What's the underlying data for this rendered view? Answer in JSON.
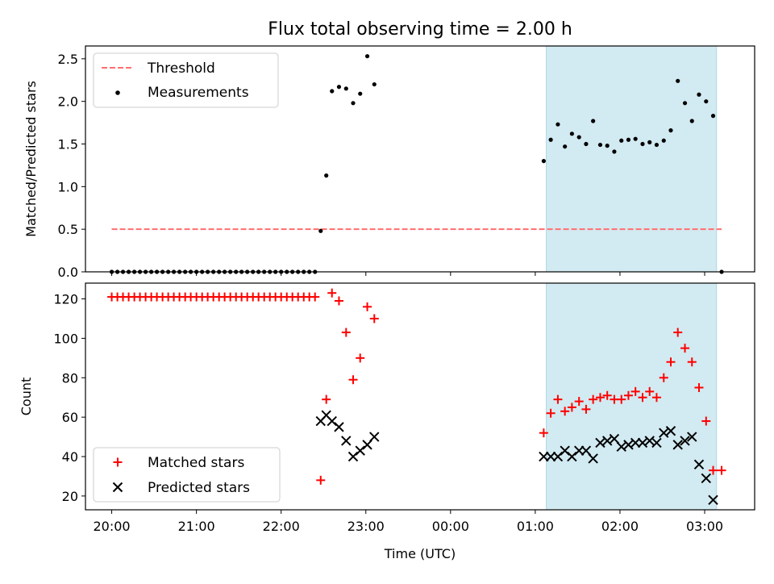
{
  "chart_data": [
    {
      "panel": "top",
      "type": "scatter",
      "title": "Flux total observing time = 2.00 h",
      "ylabel": "Matched/Predicted stars",
      "xlabel": "",
      "xlim_hours": [
        19.69,
        27.59
      ],
      "ylim": [
        0,
        2.65
      ],
      "yticks": [
        0.0,
        0.5,
        1.0,
        1.5,
        2.0,
        2.5
      ],
      "ytick_labels": [
        "0.0",
        "0.5",
        "1.0",
        "1.5",
        "2.0",
        "2.5"
      ],
      "xticks_hours": [
        20,
        21,
        22,
        23,
        24,
        25,
        26,
        27
      ],
      "legend_position": "upper-left",
      "shaded_span_hours": [
        25.13,
        27.14
      ],
      "shaded_color": "#add8e6",
      "threshold": {
        "name": "Threshold",
        "value": 0.5,
        "x_range_hours": [
          20.0,
          27.2
        ],
        "color": "#ff6f6f",
        "style": "dashed"
      },
      "series": [
        {
          "name": "Measurements",
          "color": "#000000",
          "marker": "dot",
          "x_hours": [
            20.0,
            20.067,
            20.133,
            20.2,
            20.267,
            20.333,
            20.4,
            20.467,
            20.533,
            20.6,
            20.667,
            20.733,
            20.8,
            20.867,
            20.933,
            21.0,
            21.067,
            21.133,
            21.2,
            21.267,
            21.333,
            21.4,
            21.467,
            21.533,
            21.6,
            21.667,
            21.733,
            21.8,
            21.867,
            21.933,
            22.0,
            22.067,
            22.133,
            22.2,
            22.267,
            22.333,
            22.4,
            22.467,
            22.533,
            22.6,
            22.683,
            22.767,
            22.85,
            22.933,
            23.017,
            23.1,
            25.1,
            25.183,
            25.267,
            25.35,
            25.433,
            25.517,
            25.6,
            25.683,
            25.767,
            25.85,
            25.933,
            26.017,
            26.1,
            26.183,
            26.267,
            26.35,
            26.433,
            26.517,
            26.6,
            26.683,
            26.767,
            26.85,
            26.933,
            27.017,
            27.1,
            27.2
          ],
          "y": [
            0,
            0,
            0,
            0,
            0,
            0,
            0,
            0,
            0,
            0,
            0,
            0,
            0,
            0,
            0,
            0,
            0,
            0,
            0,
            0,
            0,
            0,
            0,
            0,
            0,
            0,
            0,
            0,
            0,
            0,
            0,
            0,
            0,
            0,
            0,
            0,
            0,
            0.48,
            1.13,
            2.12,
            2.17,
            2.15,
            1.98,
            2.09,
            2.53,
            2.2,
            1.3,
            1.55,
            1.73,
            1.47,
            1.62,
            1.58,
            1.5,
            1.77,
            1.49,
            1.48,
            1.41,
            1.54,
            1.55,
            1.56,
            1.5,
            1.52,
            1.49,
            1.54,
            1.66,
            2.24,
            1.98,
            1.77,
            2.08,
            2.0,
            1.83,
            0.0
          ]
        }
      ]
    },
    {
      "panel": "bottom",
      "type": "scatter",
      "xlabel": "Time (UTC)",
      "ylabel": "Count",
      "xlim_hours": [
        19.69,
        27.59
      ],
      "ylim": [
        13,
        128
      ],
      "yticks": [
        20,
        40,
        60,
        80,
        100,
        120
      ],
      "ytick_labels": [
        "20",
        "40",
        "60",
        "80",
        "100",
        "120"
      ],
      "xticks_hours": [
        20,
        21,
        22,
        23,
        24,
        25,
        26,
        27
      ],
      "xtick_labels": [
        "20:00",
        "21:00",
        "22:00",
        "23:00",
        "00:00",
        "01:00",
        "02:00",
        "03:00"
      ],
      "legend_position": "lower-left",
      "shaded_span_hours": [
        25.13,
        27.14
      ],
      "shaded_color": "#add8e6",
      "series": [
        {
          "name": "Matched stars",
          "color": "#ff0000",
          "marker": "plus",
          "x_hours": [
            20.0,
            20.067,
            20.133,
            20.2,
            20.267,
            20.333,
            20.4,
            20.467,
            20.533,
            20.6,
            20.667,
            20.733,
            20.8,
            20.867,
            20.933,
            21.0,
            21.067,
            21.133,
            21.2,
            21.267,
            21.333,
            21.4,
            21.467,
            21.533,
            21.6,
            21.667,
            21.733,
            21.8,
            21.867,
            21.933,
            22.0,
            22.067,
            22.133,
            22.2,
            22.267,
            22.333,
            22.4,
            22.467,
            22.533,
            22.6,
            22.683,
            22.767,
            22.85,
            22.933,
            23.017,
            23.1,
            25.1,
            25.183,
            25.267,
            25.35,
            25.433,
            25.517,
            25.6,
            25.683,
            25.767,
            25.85,
            25.933,
            26.017,
            26.1,
            26.183,
            26.267,
            26.35,
            26.433,
            26.517,
            26.6,
            26.683,
            26.767,
            26.85,
            26.933,
            27.017,
            27.1,
            27.2
          ],
          "y": [
            121,
            121,
            121,
            121,
            121,
            121,
            121,
            121,
            121,
            121,
            121,
            121,
            121,
            121,
            121,
            121,
            121,
            121,
            121,
            121,
            121,
            121,
            121,
            121,
            121,
            121,
            121,
            121,
            121,
            121,
            121,
            121,
            121,
            121,
            121,
            121,
            121,
            28,
            69,
            123,
            119,
            103,
            79,
            90,
            116,
            110,
            52,
            62,
            69,
            63,
            65,
            68,
            64,
            69,
            70,
            71,
            69,
            69,
            71,
            73,
            70,
            73,
            70,
            80,
            88,
            103,
            95,
            88,
            75,
            58,
            33,
            33
          ]
        },
        {
          "name": "Predicted stars",
          "color": "#000000",
          "marker": "x",
          "x_hours": [
            22.467,
            22.533,
            22.6,
            22.683,
            22.767,
            22.85,
            22.933,
            23.017,
            23.1,
            25.1,
            25.183,
            25.267,
            25.35,
            25.433,
            25.517,
            25.6,
            25.683,
            25.767,
            25.85,
            25.933,
            26.017,
            26.1,
            26.183,
            26.267,
            26.35,
            26.433,
            26.517,
            26.6,
            26.683,
            26.767,
            26.85,
            26.933,
            27.017,
            27.1
          ],
          "y": [
            58,
            61,
            58,
            55,
            48,
            40,
            43,
            46,
            50,
            40,
            40,
            40,
            43,
            40,
            43,
            43,
            39,
            47,
            48,
            49,
            45,
            46,
            47,
            47,
            48,
            47,
            52,
            53,
            46,
            48,
            50,
            36,
            29,
            18
          ]
        }
      ]
    }
  ]
}
